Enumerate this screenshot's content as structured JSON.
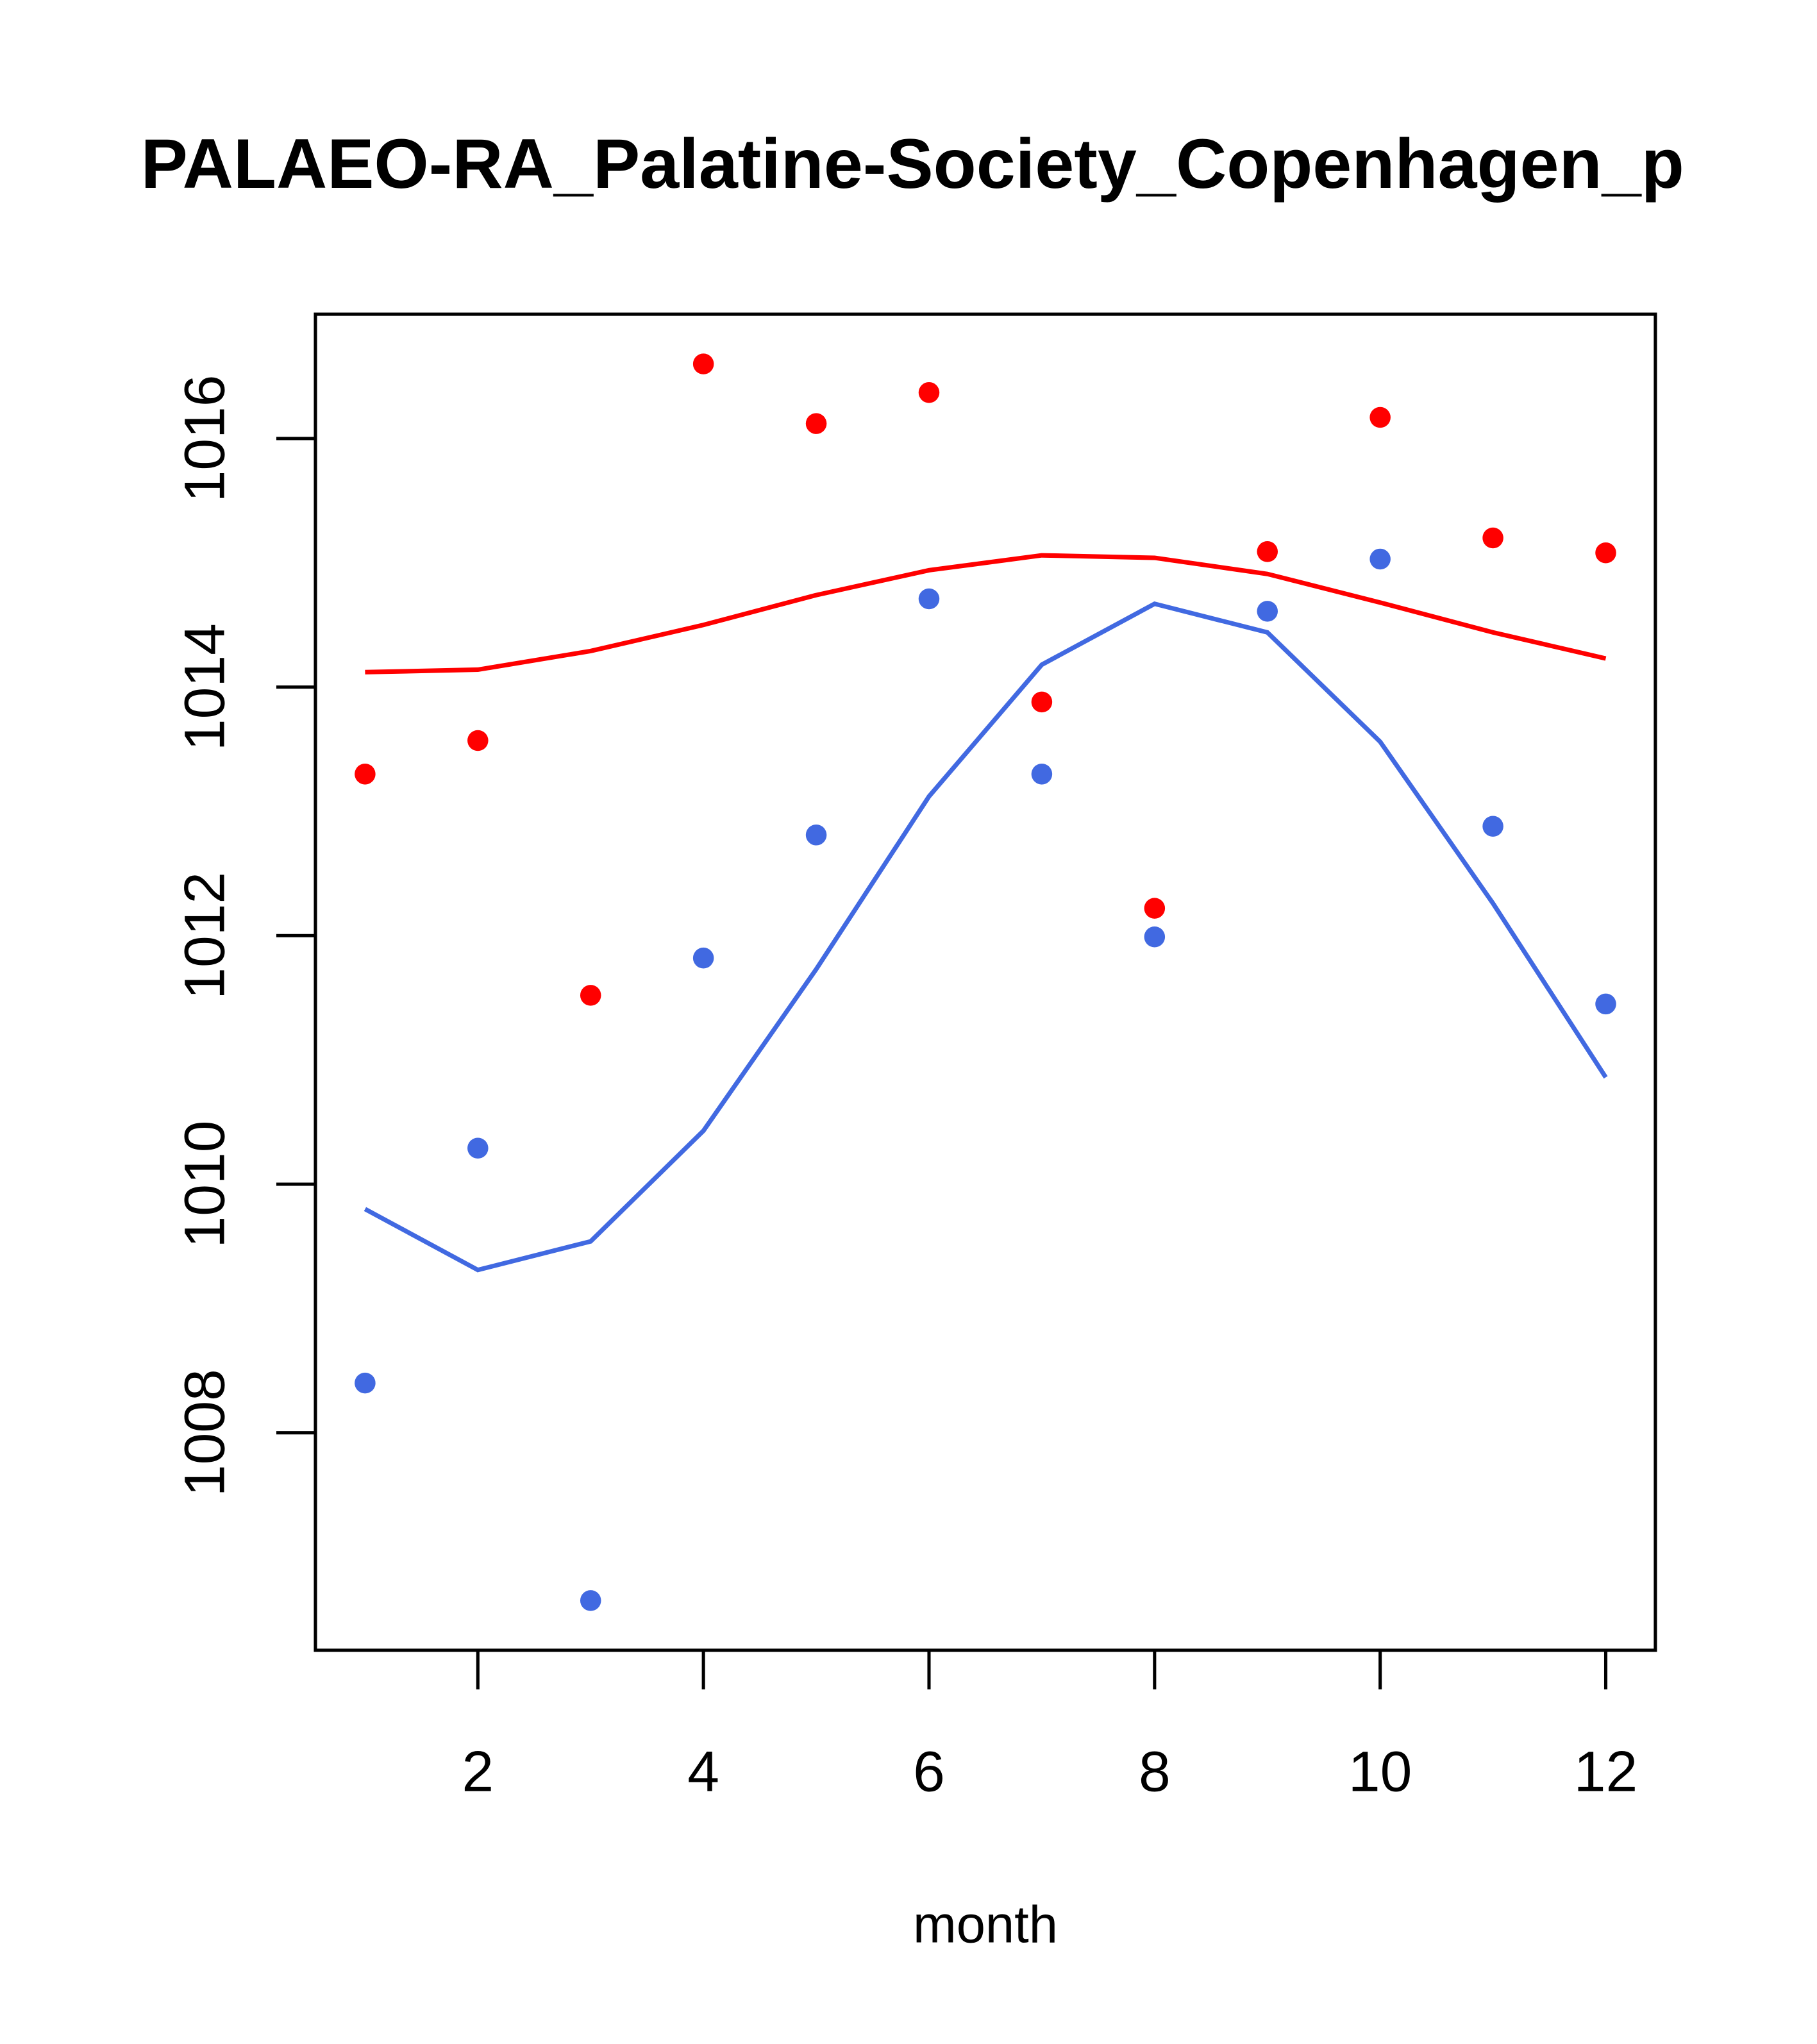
{
  "chart_data": {
    "type": "scatter",
    "title": "PALAEO-RA_Palatine-Society_Copenhagen_p",
    "xlabel": "month",
    "ylabel": "",
    "xlim": [
      0.56,
      12.44
    ],
    "ylim": [
      1006.25,
      1017.0
    ],
    "xticks": [
      2,
      4,
      6,
      8,
      10,
      12
    ],
    "yticks": [
      1008,
      1010,
      1012,
      1014,
      1016
    ],
    "grid": false,
    "x": [
      1,
      2,
      3,
      4,
      5,
      6,
      7,
      8,
      9,
      10,
      11,
      12
    ],
    "series": [
      {
        "name": "red points",
        "kind": "points",
        "color": "#ff0000",
        "values": [
          1013.3,
          1013.57,
          1011.52,
          1016.6,
          1016.12,
          1016.37,
          1013.88,
          1012.22,
          1015.09,
          1016.17,
          1015.2,
          1015.08
        ]
      },
      {
        "name": "blue points",
        "kind": "points",
        "color": "#4169e1",
        "values": [
          1008.4,
          1010.29,
          1006.65,
          1011.82,
          1012.81,
          1014.71,
          1013.3,
          1011.99,
          1014.61,
          1015.03,
          1012.88,
          1011.45
        ]
      },
      {
        "name": "red line",
        "kind": "line",
        "color": "#ff0000",
        "values": [
          1014.12,
          1014.14,
          1014.29,
          1014.5,
          1014.74,
          1014.94,
          1015.06,
          1015.04,
          1014.91,
          1014.68,
          1014.44,
          1014.23
        ]
      },
      {
        "name": "blue line",
        "kind": "line",
        "color": "#4169e1",
        "values": [
          1009.8,
          1009.31,
          1009.54,
          1010.43,
          1011.73,
          1013.12,
          1014.18,
          1014.67,
          1014.44,
          1013.56,
          1012.26,
          1010.86
        ]
      }
    ]
  }
}
